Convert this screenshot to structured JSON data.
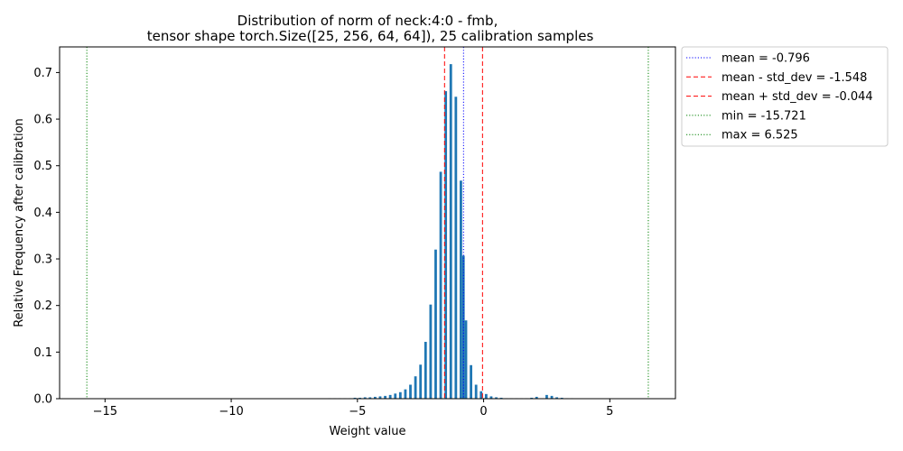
{
  "chart_data": {
    "type": "bar",
    "title_line1": "Distribution of norm of neck:4:0 - fmb,",
    "title_line2": "tensor shape torch.Size([25, 256, 64, 64]), 25 calibration samples",
    "xlabel": "Weight value",
    "ylabel": "Relative Frequency after calibration",
    "xlim": [
      -16.8,
      7.6
    ],
    "ylim": [
      0,
      0.755
    ],
    "xticks": [
      -15,
      -10,
      -5,
      0,
      5
    ],
    "xtick_labels": [
      "−15",
      "−10",
      "−5",
      "0",
      "5"
    ],
    "yticks": [
      0.0,
      0.1,
      0.2,
      0.3,
      0.4,
      0.5,
      0.6,
      0.7
    ],
    "ytick_labels": [
      "0.0",
      "0.1",
      "0.2",
      "0.3",
      "0.4",
      "0.5",
      "0.6",
      "0.7"
    ],
    "bar_color": "#1f77b4",
    "bar_width": 0.1,
    "x": [
      -6.1,
      -5.9,
      -5.7,
      -5.5,
      -5.3,
      -5.1,
      -4.9,
      -4.7,
      -4.5,
      -4.3,
      -4.1,
      -3.9,
      -3.7,
      -3.5,
      -3.3,
      -3.1,
      -2.9,
      -2.7,
      -2.5,
      -2.3,
      -2.1,
      -1.9,
      -1.7,
      -1.5,
      -1.3,
      -1.1,
      -0.9,
      -0.8,
      -0.7,
      -0.5,
      -0.3,
      -0.1,
      0.1,
      0.3,
      0.5,
      0.7,
      0.9,
      1.1,
      1.3,
      1.5,
      1.7,
      1.9,
      2.1,
      2.5,
      2.7,
      2.9,
      3.1,
      3.3,
      3.5
    ],
    "values": [
      0.001,
      0.001,
      0.001,
      0.001,
      0.001,
      0.002,
      0.002,
      0.003,
      0.003,
      0.004,
      0.005,
      0.006,
      0.008,
      0.011,
      0.014,
      0.02,
      0.03,
      0.048,
      0.073,
      0.122,
      0.202,
      0.32,
      0.487,
      0.66,
      0.718,
      0.648,
      0.468,
      0.307,
      0.168,
      0.072,
      0.03,
      0.016,
      0.01,
      0.005,
      0.003,
      0.002,
      0.001,
      0.001,
      0.001,
      0.001,
      0.001,
      0.002,
      0.004,
      0.008,
      0.006,
      0.003,
      0.002,
      0.001,
      0.001
    ],
    "vlines": [
      {
        "label": "mean = -0.796",
        "x": -0.796,
        "color": "#0000ff",
        "style": "dotted"
      },
      {
        "label": "mean - std_dev = -1.548",
        "x": -1.548,
        "color": "#ff0000",
        "style": "dashed"
      },
      {
        "label": "mean + std_dev = -0.044",
        "x": -0.044,
        "color": "#ff0000",
        "style": "dashed"
      },
      {
        "label": "min = -15.721",
        "x": -15.721,
        "color": "#008000",
        "style": "dotted"
      },
      {
        "label": "max = 6.525",
        "x": 6.525,
        "color": "#008000",
        "style": "dotted"
      }
    ],
    "legend_position": "outside-upper-right",
    "grid": false
  }
}
